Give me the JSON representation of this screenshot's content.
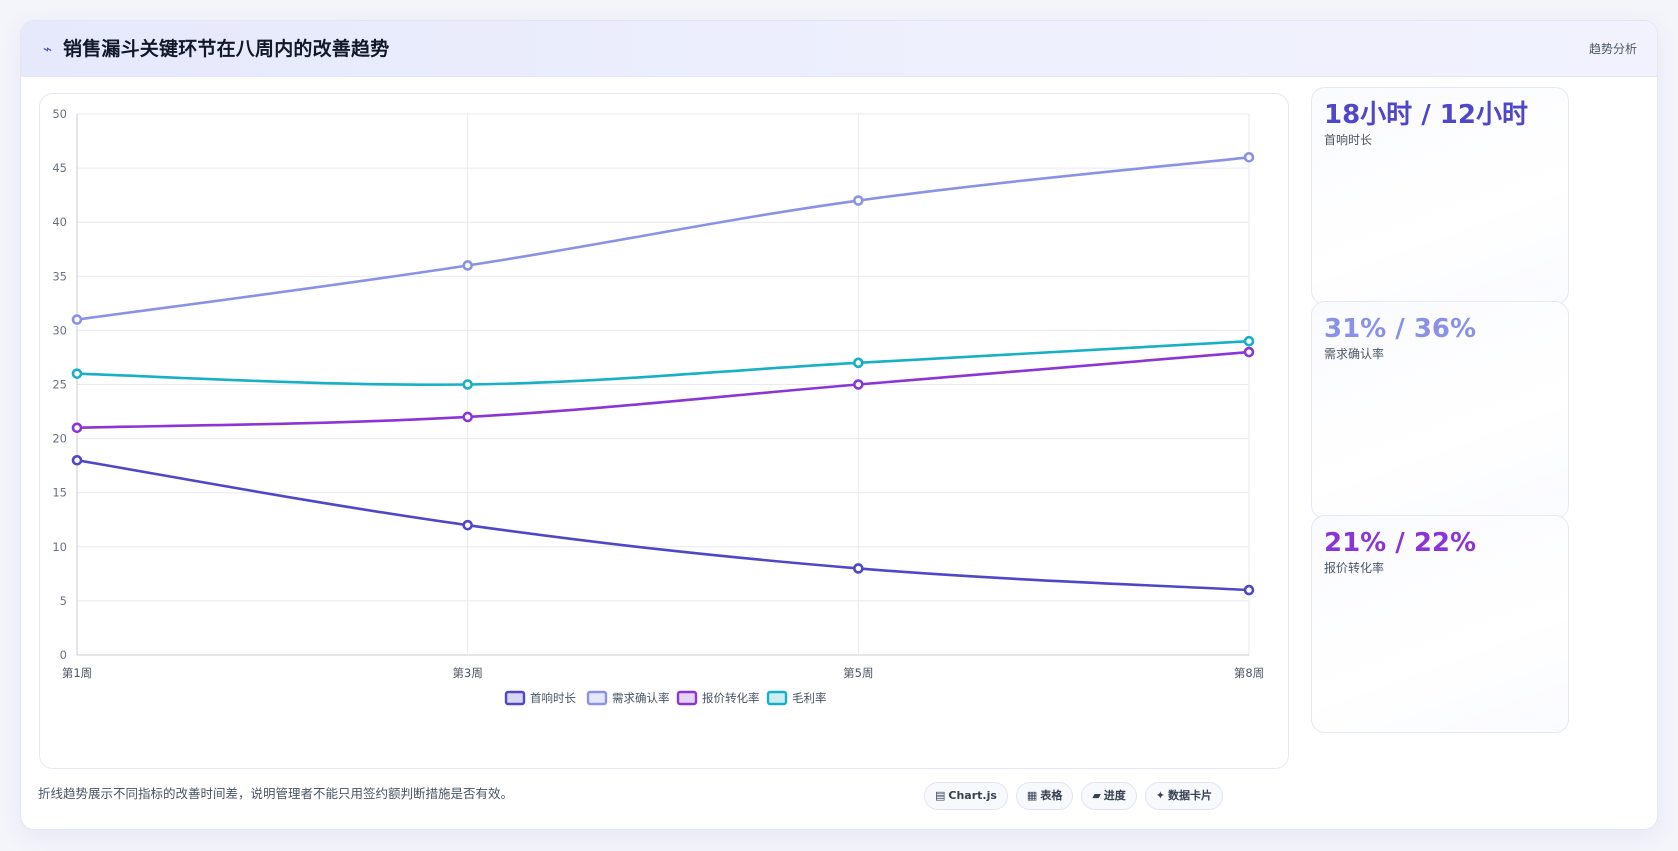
{
  "header": {
    "icon": "trend-line-icon",
    "icon_glyph": "⌁",
    "title": "销售漏斗关键环节在八周内的改善趋势",
    "tag": "趋势分析"
  },
  "chart_data": {
    "type": "line",
    "categories": [
      "第1周",
      "第3周",
      "第5周",
      "第8周"
    ],
    "ylim": [
      0,
      50
    ],
    "yticks": [
      0,
      5,
      10,
      15,
      20,
      25,
      30,
      35,
      40,
      45,
      50
    ],
    "grid": true,
    "legend_position": "bottom",
    "series": [
      {
        "name": "首响时长",
        "values": [
          18,
          12,
          8,
          6
        ],
        "color": "#4f46c8"
      },
      {
        "name": "需求确认率",
        "values": [
          31,
          36,
          42,
          46
        ],
        "color": "#8b92e6"
      },
      {
        "name": "报价转化率",
        "values": [
          21,
          22,
          25,
          28
        ],
        "color": "#8b35d6"
      },
      {
        "name": "毛利率",
        "values": [
          26,
          25,
          27,
          29
        ],
        "color": "#17b0c4"
      }
    ]
  },
  "cards": [
    {
      "value": "18小时 / 12小时",
      "label": "首响时长",
      "color": "#4f46c8"
    },
    {
      "value": "31% / 36%",
      "label": "需求确认率",
      "color": "#8b92e6"
    },
    {
      "value": "21% / 22%",
      "label": "报价转化率",
      "color": "#8b35d6"
    }
  ],
  "footnote": "折线趋势展示不同指标的改善时间差，说明管理者不能只用签约额判断措施是否有效。",
  "chips": [
    {
      "icon": "chart-icon",
      "glyph": "▤",
      "label": "Chart.js"
    },
    {
      "icon": "table-icon",
      "glyph": "▦",
      "label": "表格"
    },
    {
      "icon": "progress-icon",
      "glyph": "▰",
      "label": "进度"
    },
    {
      "icon": "data-card-icon",
      "glyph": "✦",
      "label": "数据卡片"
    }
  ]
}
